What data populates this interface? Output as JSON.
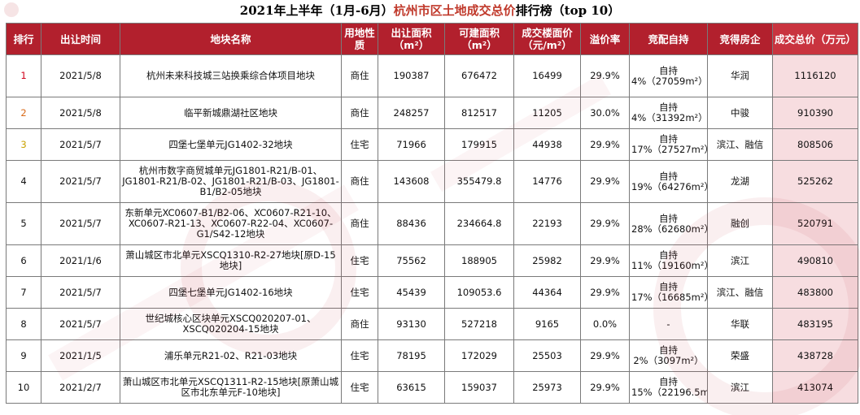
{
  "title": {
    "prefix": "2021年上半年（1月-6月）",
    "highlight": "杭州市区土地成交总价",
    "suffix": "排行榜（top 10）"
  },
  "headers": {
    "rank": "排行",
    "date": "出让时间",
    "name": "地块名称",
    "use": "用地性质",
    "area": "出让面积（m²）",
    "build": "可建面积（m²）",
    "price": "成交楼面价（元/m²）",
    "premium": "溢价率",
    "self": "竞配自持",
    "developer": "竞得房企",
    "total": "成交总价（万元）"
  },
  "rows": [
    {
      "rank": "1",
      "date": "2021/5/8",
      "name": "杭州未来科技城三站换乘综合体项目地块",
      "use": "商住",
      "area": "190387",
      "build": "676472",
      "price": "16499",
      "premium": "29.9%",
      "self": "自持4%（27059m²）",
      "developer": "华润",
      "total": "1116120"
    },
    {
      "rank": "2",
      "date": "2021/5/8",
      "name": "临平新城鼎湖社区地块",
      "use": "商住",
      "area": "248257",
      "build": "812517",
      "price": "11205",
      "premium": "30.0%",
      "self": "自持4%（31392m²）",
      "developer": "中骏",
      "total": "910390"
    },
    {
      "rank": "3",
      "date": "2021/5/7",
      "name": "四堡七堡单元JG1402-32地块",
      "use": "住宅",
      "area": "71966",
      "build": "179915",
      "price": "44938",
      "premium": "29.9%",
      "self": "自持17%（27527m²）",
      "developer": "滨江、融信",
      "total": "808506"
    },
    {
      "rank": "4",
      "date": "2021/5/7",
      "name": "杭州市数字商贸城单元JG1801-R21/B-01、JG1801-R21/B-02、JG1801-R21/B-03、JG1801-B1/B2-05地块",
      "use": "商住",
      "area": "143608",
      "build": "355479.8",
      "price": "14776",
      "premium": "29.9%",
      "self": "自持19%（64276m²）",
      "developer": "龙湖",
      "total": "525262"
    },
    {
      "rank": "5",
      "date": "2021/5/7",
      "name": "东新单元XC0607-B1/B2-06、XC0607-R21-10、XC0607-R21-13、XC0607-R22-04、XC0607-G1/S42-12地块",
      "use": "商住",
      "area": "88436",
      "build": "234664.8",
      "price": "22193",
      "premium": "29.9%",
      "self": "自持28%（62680m²）",
      "developer": "融创",
      "total": "520791"
    },
    {
      "rank": "6",
      "date": "2021/1/6",
      "name": "萧山城区市北单元XSCQ1310-R2-27地块[原D-15地块]",
      "use": "住宅",
      "area": "75562",
      "build": "188905",
      "price": "25982",
      "premium": "29.9%",
      "self": "自持11%（19160m²）",
      "developer": "滨江",
      "total": "490810"
    },
    {
      "rank": "7",
      "date": "2021/5/7",
      "name": "四堡七堡单元JG1402-16地块",
      "use": "住宅",
      "area": "45439",
      "build": "109053.6",
      "price": "44364",
      "premium": "29.9%",
      "self": "自持17%（16685m²）",
      "developer": "滨江、融信",
      "total": "483800"
    },
    {
      "rank": "8",
      "date": "2021/5/7",
      "name": "世纪城核心区块单元XSCQ020207-01、XSCQ020204-15地块",
      "use": "商住",
      "area": "93130",
      "build": "527218",
      "price": "9165",
      "premium": "0.0%",
      "self": "-",
      "developer": "华联",
      "total": "483195"
    },
    {
      "rank": "9",
      "date": "2021/1/5",
      "name": "浦乐单元R21-02、R21-03地块",
      "use": "住宅",
      "area": "78195",
      "build": "172029",
      "price": "25503",
      "premium": "29.9%",
      "self": "自持2%（3097m²）",
      "developer": "荣盛",
      "total": "438728"
    },
    {
      "rank": "10",
      "date": "2021/2/7",
      "name": "萧山城区市北单元XSCQ1311-R2-15地块[原萧山城区市北东单元F-10地块]",
      "use": "住宅",
      "area": "63615",
      "build": "159037",
      "price": "25973",
      "premium": "29.9%",
      "self": "自持15%（22196.5m²）",
      "developer": "滨江",
      "total": "413074"
    }
  ]
}
